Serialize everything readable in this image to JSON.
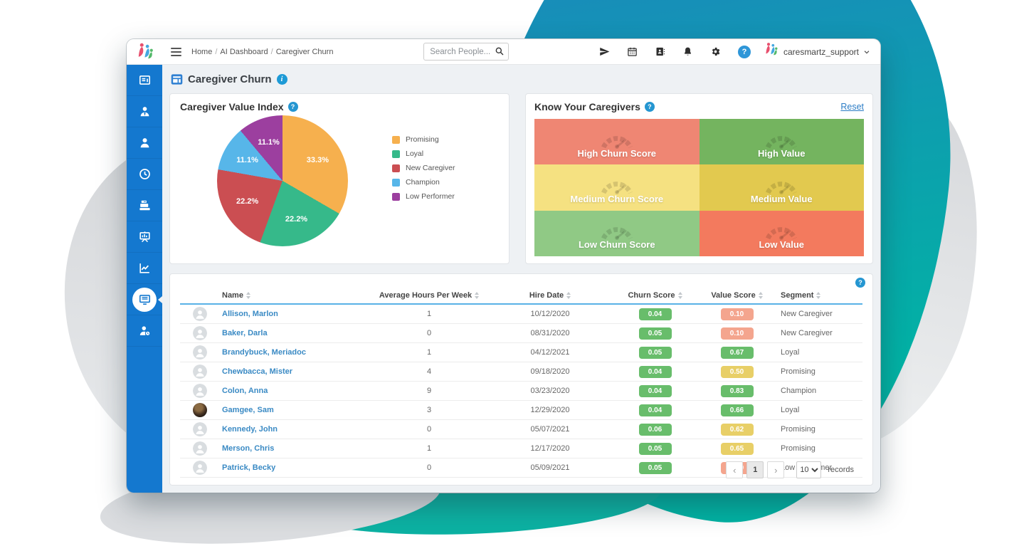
{
  "topbar": {
    "breadcrumb": [
      "Home",
      "AI Dashboard",
      "Caregiver Churn"
    ],
    "search_placeholder": "Search People...",
    "icons": [
      "paper-plane",
      "calendar",
      "address-book",
      "bell",
      "gear",
      "help"
    ],
    "help_glyph": "?",
    "username": "caresmartz_support"
  },
  "sidebar": {
    "items": [
      {
        "icon": "dashboard",
        "active": false
      },
      {
        "icon": "person-tie",
        "active": false
      },
      {
        "icon": "person",
        "active": false
      },
      {
        "icon": "clock",
        "active": false
      },
      {
        "icon": "cash-register",
        "active": false
      },
      {
        "icon": "presentation-chart",
        "active": false
      },
      {
        "icon": "line-chart",
        "active": false
      },
      {
        "icon": "monitor",
        "active": true
      },
      {
        "icon": "person-clock",
        "active": false
      }
    ]
  },
  "page": {
    "title": "Caregiver Churn"
  },
  "value_index_panel": {
    "title": "Caregiver Value Index"
  },
  "chart_data": {
    "type": "pie",
    "title": "Caregiver Value Index",
    "labels": [
      "Promising",
      "Loyal",
      "New Caregiver",
      "Champion",
      "Low Performer"
    ],
    "values": [
      33.3,
      22.2,
      22.2,
      11.1,
      11.1
    ],
    "display_values": [
      "33.3%",
      "22.2%",
      "22.2%",
      "11.1%",
      "11.1%"
    ],
    "colors": [
      "#f6b04e",
      "#36b98a",
      "#cb4e52",
      "#57b6e9",
      "#9c3f9f"
    ],
    "legend_position": "right"
  },
  "know_caregivers_panel": {
    "title": "Know Your Caregivers",
    "reset_label": "Reset",
    "cells": [
      {
        "label": "High Churn Score",
        "color": "#ef8673"
      },
      {
        "label": "High Value",
        "color": "#74b45f"
      },
      {
        "label": "Medium Churn Score",
        "color": "#f5e181"
      },
      {
        "label": "Medium Value",
        "color": "#e2c94f"
      },
      {
        "label": "Low Churn Score",
        "color": "#90c985"
      },
      {
        "label": "Low Value",
        "color": "#f37a5e"
      }
    ]
  },
  "table": {
    "headers": [
      "Name",
      "Average Hours Per Week",
      "Hire Date",
      "Churn Score",
      "Value Score",
      "Segment"
    ],
    "badge_colors": {
      "green": "#68bd6b",
      "salmon": "#f4a58e",
      "yellow": "#e8cf67"
    },
    "rows": [
      {
        "name": "Allison, Marlon",
        "avatar": "placeholder",
        "hours": "1",
        "hire_date": "10/12/2020",
        "churn_score": "0.04",
        "churn_color": "green",
        "value_score": "0.10",
        "value_color": "salmon",
        "segment": "New Caregiver"
      },
      {
        "name": "Baker, Darla",
        "avatar": "placeholder",
        "hours": "0",
        "hire_date": "08/31/2020",
        "churn_score": "0.05",
        "churn_color": "green",
        "value_score": "0.10",
        "value_color": "salmon",
        "segment": "New Caregiver"
      },
      {
        "name": "Brandybuck, Meriadoc",
        "avatar": "placeholder",
        "hours": "1",
        "hire_date": "04/12/2021",
        "churn_score": "0.05",
        "churn_color": "green",
        "value_score": "0.67",
        "value_color": "green",
        "segment": "Loyal"
      },
      {
        "name": "Chewbacca, Mister",
        "avatar": "placeholder",
        "hours": "4",
        "hire_date": "09/18/2020",
        "churn_score": "0.04",
        "churn_color": "green",
        "value_score": "0.50",
        "value_color": "yellow",
        "segment": "Promising"
      },
      {
        "name": "Colon, Anna",
        "avatar": "placeholder",
        "hours": "9",
        "hire_date": "03/23/2020",
        "churn_score": "0.04",
        "churn_color": "green",
        "value_score": "0.83",
        "value_color": "green",
        "segment": "Champion"
      },
      {
        "name": "Gamgee, Sam",
        "avatar": "photo",
        "hours": "3",
        "hire_date": "12/29/2020",
        "churn_score": "0.04",
        "churn_color": "green",
        "value_score": "0.66",
        "value_color": "green",
        "segment": "Loyal"
      },
      {
        "name": "Kennedy, John",
        "avatar": "placeholder",
        "hours": "0",
        "hire_date": "05/07/2021",
        "churn_score": "0.06",
        "churn_color": "green",
        "value_score": "0.62",
        "value_color": "yellow",
        "segment": "Promising"
      },
      {
        "name": "Merson, Chris",
        "avatar": "placeholder",
        "hours": "1",
        "hire_date": "12/17/2020",
        "churn_score": "0.05",
        "churn_color": "green",
        "value_score": "0.65",
        "value_color": "yellow",
        "segment": "Promising"
      },
      {
        "name": "Patrick, Becky",
        "avatar": "placeholder",
        "hours": "0",
        "hire_date": "05/09/2021",
        "churn_score": "0.05",
        "churn_color": "green",
        "value_score": "0.30",
        "value_color": "salmon",
        "segment": "Low Performer"
      }
    ],
    "pagination": {
      "prev": "‹",
      "page": "1",
      "next": "›",
      "per_page": "10",
      "records_label": "records"
    }
  }
}
